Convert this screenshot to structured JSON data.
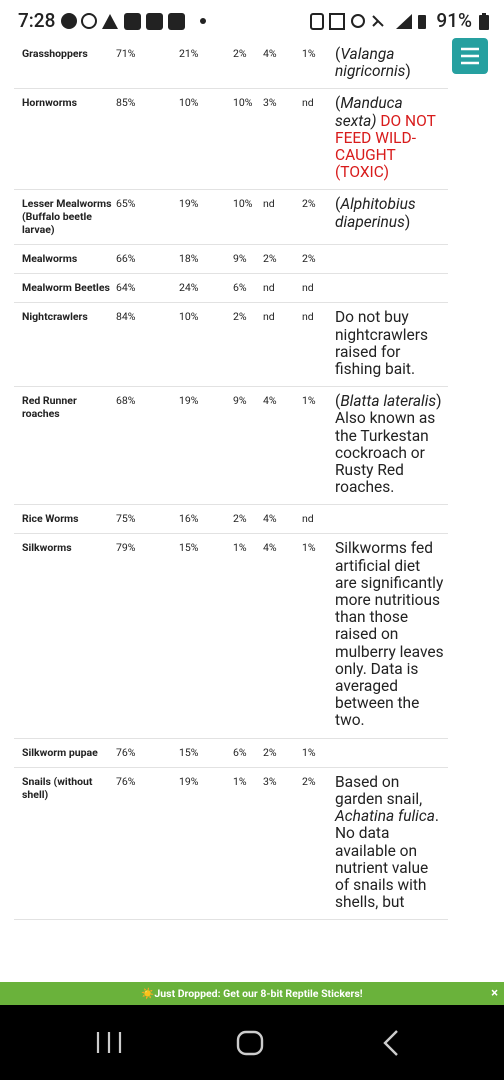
{
  "status_bar": {
    "time": "7:28",
    "battery": "91%"
  },
  "table": {
    "rows": [
      {
        "name": "Grasshoppers",
        "values": [
          "71%",
          "21%",
          "2%",
          "4%",
          "1%"
        ],
        "note": [
          {
            "text": "("
          },
          {
            "text": "Valanga nigricornis",
            "italic": true
          },
          {
            "text": ")"
          }
        ]
      },
      {
        "name": "Hornworms",
        "values": [
          "85%",
          "10%",
          "10%",
          "3%",
          "nd"
        ],
        "note": [
          {
            "text": "("
          },
          {
            "text": "Manduca sexta)",
            "italic": true
          },
          {
            "text": " DO NOT FEED WILD-CAUGHT (TOXIC)",
            "color": "#d81b1b"
          }
        ]
      },
      {
        "name": "Lesser Mealworms (Buffalo beetle larvae)",
        "values": [
          "65%",
          "19%",
          "10%",
          "nd",
          "2%"
        ],
        "note": [
          {
            "text": "("
          },
          {
            "text": "Alphitobius diaperinus",
            "italic": true
          },
          {
            "text": ")"
          }
        ]
      },
      {
        "name": "Mealworms",
        "values": [
          "66%",
          "18%",
          "9%",
          "2%",
          "2%"
        ],
        "note": []
      },
      {
        "name": "Mealworm Beetles",
        "values": [
          "64%",
          "24%",
          "6%",
          "nd",
          "nd"
        ],
        "note": []
      },
      {
        "name": "Nightcrawlers",
        "values": [
          "84%",
          "10%",
          "2%",
          "nd",
          "nd"
        ],
        "note": [
          {
            "text": "Do not buy nightcrawlers raised for fishing bait."
          }
        ]
      },
      {
        "name": "Red Runner roaches",
        "values": [
          "68%",
          "19%",
          "9%",
          "4%",
          "1%"
        ],
        "note": [
          {
            "text": "("
          },
          {
            "text": "Blatta lateralis",
            "italic": true
          },
          {
            "text": ") Also known as the Turkestan cockroach or Rusty Red roaches."
          }
        ]
      },
      {
        "name": "Rice Worms",
        "values": [
          "75%",
          "16%",
          "2%",
          "4%",
          "nd"
        ],
        "note": []
      },
      {
        "name": "Silkworms",
        "values": [
          "79%",
          "15%",
          "1%",
          "4%",
          "1%"
        ],
        "note": [
          {
            "text": "Silkworms fed artificial diet are significantly more nutritious than those raised on mulberry leaves only. Data is averaged between the two."
          }
        ]
      },
      {
        "name": "Silkworm pupae",
        "values": [
          "76%",
          "15%",
          "6%",
          "2%",
          "1%"
        ],
        "note": []
      },
      {
        "name": "Snails (without shell)",
        "values": [
          "76%",
          "19%",
          "1%",
          "3%",
          "2%"
        ],
        "note": [
          {
            "text": "Based on garden snail, "
          },
          {
            "text": "Achatina fulica",
            "italic": true
          },
          {
            "text": ". No data available on nutrient value of snails with shells, but"
          }
        ]
      }
    ]
  },
  "banner": {
    "text": "☀️Just Dropped: Get our 8-bit Reptile Stickers!",
    "close": "×"
  }
}
